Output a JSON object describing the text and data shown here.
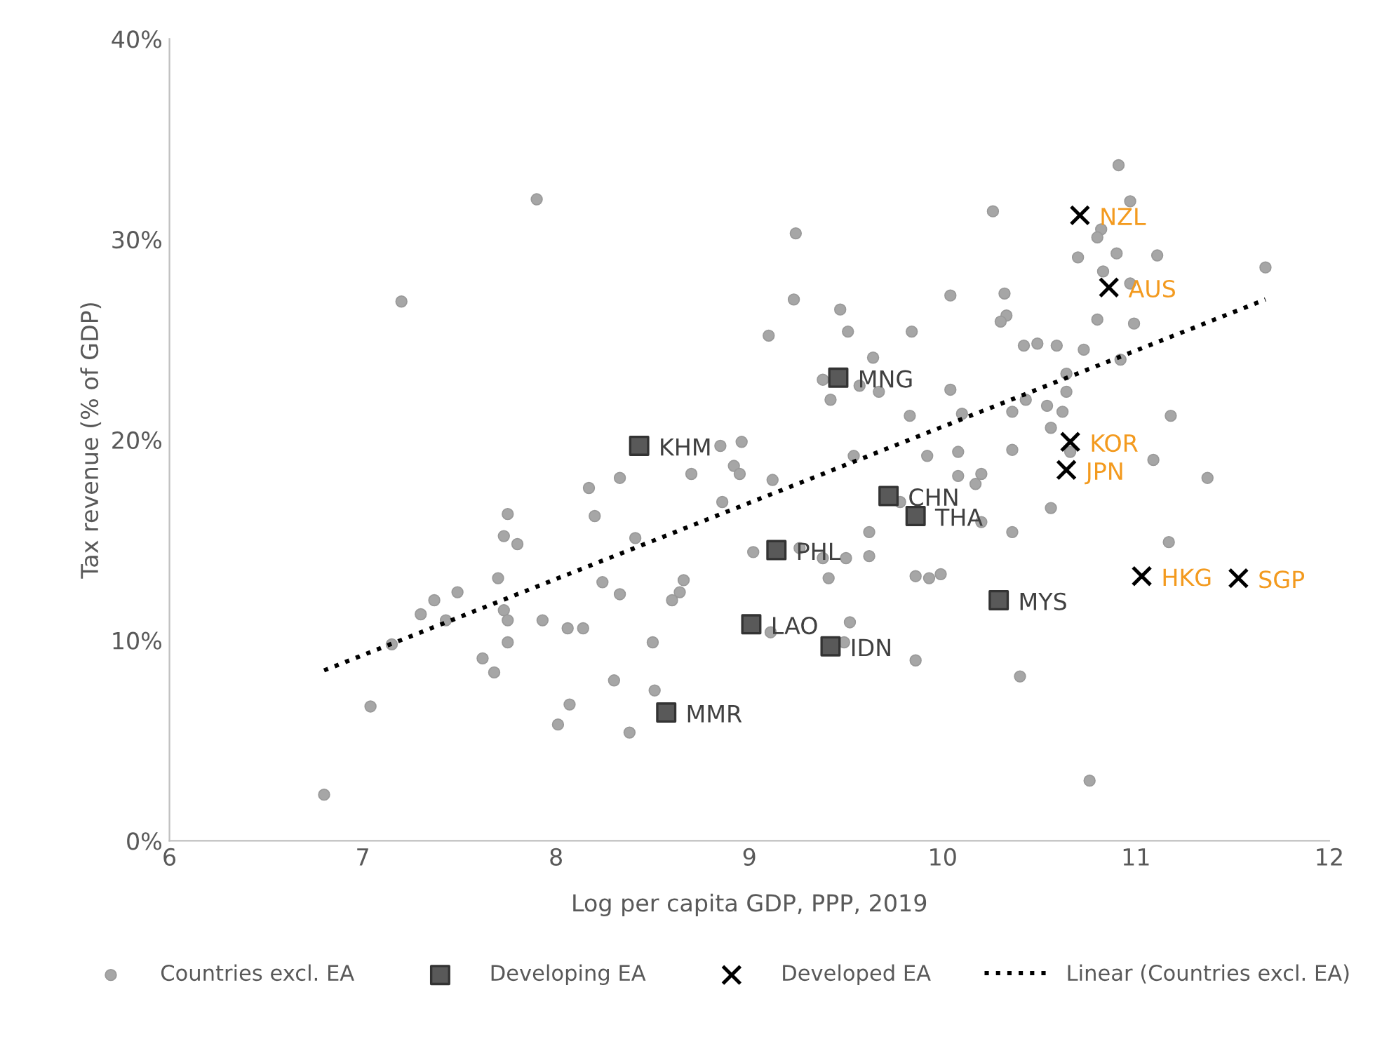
{
  "chart_data": {
    "type": "scatter",
    "xlabel": "Log per capita GDP, PPP, 2019",
    "ylabel": "Tax revenue (% of GDP)",
    "xlim": [
      6,
      12
    ],
    "xticks": [
      6,
      7,
      8,
      9,
      10,
      11,
      12
    ],
    "ylim": [
      0,
      40
    ],
    "yticks": [
      {
        "value": 0,
        "label": "0%"
      },
      {
        "value": 10,
        "label": "10%"
      },
      {
        "value": 20,
        "label": "20%"
      },
      {
        "value": 30,
        "label": "30%"
      },
      {
        "value": 40,
        "label": "40%"
      }
    ],
    "grid": false,
    "legend": "bottom",
    "series": [
      {
        "name": "Countries excl. EA",
        "marker": "circle",
        "color": "#a6a6a6",
        "x": [
          7.2,
          7.9,
          8.96,
          8.85,
          8.92,
          8.95,
          8.7,
          8.33,
          8.17,
          8.86,
          8.2,
          7.75,
          7.73,
          7.8,
          8.41,
          9.02,
          7.7,
          8.24,
          8.33,
          7.49,
          7.37,
          7.3,
          7.43,
          7.73,
          7.75,
          7.93,
          8.06,
          8.14,
          8.66,
          8.64,
          8.6,
          7.15,
          7.75,
          8.5,
          7.62,
          7.68,
          8.3,
          8.51,
          7.04,
          8.07,
          8.01,
          8.38,
          6.8,
          10.91,
          10.97,
          10.26,
          10.82,
          10.8,
          9.24,
          10.9,
          10.7,
          10.83,
          10.97,
          9.23,
          10.04,
          10.32,
          9.47,
          10.33,
          10.3,
          10.8,
          10.99,
          9.1,
          9.84,
          9.51,
          10.42,
          10.49,
          10.59,
          10.73,
          10.92,
          9.64,
          9.38,
          9.57,
          9.67,
          9.42,
          10.04,
          10.64,
          10.64,
          10.43,
          10.54,
          10.62,
          10.36,
          10.1,
          9.83,
          10.56,
          9.54,
          9.92,
          10.08,
          10.36,
          10.66,
          9.12,
          10.08,
          10.2,
          10.17,
          10.56,
          9.78,
          10.2,
          10.36,
          9.62,
          9.26,
          9.38,
          9.5,
          9.62,
          9.41,
          9.86,
          9.93,
          9.99,
          9.52,
          9.11,
          9.49,
          9.86,
          10.4,
          11.11,
          11.67,
          11.18,
          11.09,
          11.37,
          11.17,
          10.76
        ],
        "values": [
          26.9,
          32.0,
          19.9,
          19.7,
          18.7,
          18.3,
          18.3,
          18.1,
          17.6,
          16.9,
          16.2,
          16.3,
          15.2,
          14.8,
          15.1,
          14.4,
          13.1,
          12.9,
          12.3,
          12.4,
          12.0,
          11.3,
          11.0,
          11.5,
          11.0,
          11.0,
          10.6,
          10.6,
          13.0,
          12.4,
          12.0,
          9.8,
          9.9,
          9.9,
          9.1,
          8.4,
          8.0,
          7.5,
          6.7,
          6.8,
          5.8,
          5.4,
          2.3,
          33.7,
          31.9,
          31.4,
          30.5,
          30.1,
          30.3,
          29.3,
          29.1,
          28.4,
          27.8,
          27.0,
          27.2,
          27.3,
          26.5,
          26.2,
          25.9,
          26.0,
          25.8,
          25.2,
          25.4,
          25.4,
          24.7,
          24.8,
          24.7,
          24.5,
          24.0,
          24.1,
          23.0,
          22.7,
          22.4,
          22.0,
          22.5,
          23.3,
          22.4,
          22.0,
          21.7,
          21.4,
          21.4,
          21.3,
          21.2,
          20.6,
          19.2,
          19.2,
          19.4,
          19.5,
          19.4,
          18.0,
          18.2,
          18.3,
          17.8,
          16.6,
          16.9,
          15.9,
          15.4,
          15.4,
          14.6,
          14.1,
          14.1,
          14.2,
          13.1,
          13.2,
          13.1,
          13.3,
          10.9,
          10.4,
          9.9,
          9.0,
          8.2,
          29.2,
          28.6,
          21.2,
          19.0,
          18.1,
          14.9,
          3.0
        ]
      },
      {
        "name": "Developing EA",
        "marker": "square",
        "color": "#595959",
        "x": [
          8.43,
          8.57,
          9.46,
          9.72,
          9.86,
          9.14,
          10.29,
          9.01,
          9.42
        ],
        "values": [
          19.7,
          6.4,
          23.1,
          17.2,
          16.2,
          14.5,
          12.0,
          10.8,
          9.7
        ]
      },
      {
        "name": "Developed EA",
        "marker": "cross",
        "color": "#000000",
        "x": [
          10.71,
          10.86,
          10.66,
          10.64,
          11.03,
          11.53
        ],
        "values": [
          31.2,
          27.6,
          19.9,
          18.5,
          13.2,
          13.1
        ]
      },
      {
        "name": "Linear (Countries excl. EA)",
        "type": "line",
        "marker": "none",
        "line_style": "dotted",
        "color": "#000000",
        "x": [
          6.8,
          11.67
        ],
        "values": [
          8.5,
          27.0
        ]
      }
    ],
    "annotations": [
      {
        "text": "KHM",
        "x": 8.43,
        "y": 19.7
      },
      {
        "text": "MMR",
        "x": 8.57,
        "y": 6.4
      },
      {
        "text": "MNG",
        "x": 9.46,
        "y": 23.1
      },
      {
        "text": "CHN",
        "x": 9.72,
        "y": 17.2
      },
      {
        "text": "THA",
        "x": 9.86,
        "y": 16.2
      },
      {
        "text": "PHL",
        "x": 9.14,
        "y": 14.5
      },
      {
        "text": "MYS",
        "x": 10.29,
        "y": 12.0
      },
      {
        "text": "LAO",
        "x": 9.01,
        "y": 10.8
      },
      {
        "text": "IDN",
        "x": 9.42,
        "y": 9.7
      },
      {
        "text": "NZL",
        "x": 10.71,
        "y": 31.2
      },
      {
        "text": "AUS",
        "x": 10.86,
        "y": 27.6
      },
      {
        "text": "KOR",
        "x": 10.66,
        "y": 19.9
      },
      {
        "text": "JPN",
        "x": 10.64,
        "y": 18.5
      },
      {
        "text": "HKG",
        "x": 11.03,
        "y": 13.2
      },
      {
        "text": "SGP",
        "x": 11.53,
        "y": 13.1
      }
    ]
  }
}
